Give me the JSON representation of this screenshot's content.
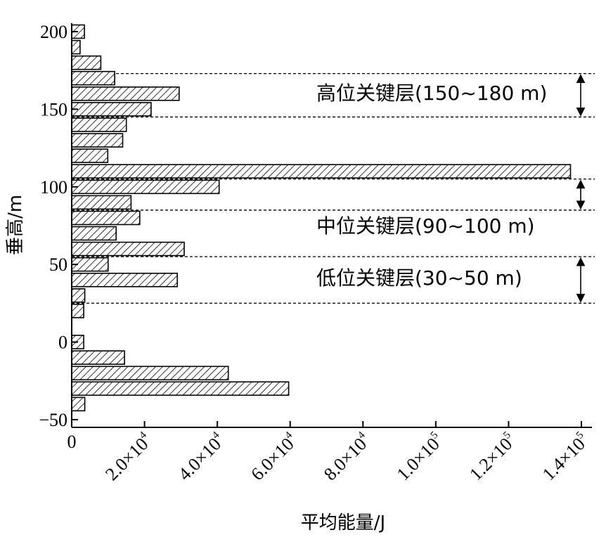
{
  "chart_data": {
    "type": "bar",
    "orientation": "horizontal",
    "title": "",
    "xlabel": "平均能量/J",
    "ylabel": "垂高/m",
    "xlim": [
      0,
      140000
    ],
    "ylim": [
      -50,
      200
    ],
    "x_ticks": [
      {
        "value": 0,
        "mantissa": "0",
        "power": ""
      },
      {
        "value": 20000,
        "mantissa": "2.0×10",
        "power": "4"
      },
      {
        "value": 40000,
        "mantissa": "4.0×10",
        "power": "4"
      },
      {
        "value": 60000,
        "mantissa": "6.0×10",
        "power": "4"
      },
      {
        "value": 80000,
        "mantissa": "8.0×10",
        "power": "4"
      },
      {
        "value": 100000,
        "mantissa": "1.0×10",
        "power": "5"
      },
      {
        "value": 120000,
        "mantissa": "1.2×10",
        "power": "5"
      },
      {
        "value": 140000,
        "mantissa": "1.4×10",
        "power": "5"
      }
    ],
    "y_ticks": [
      "200",
      "150",
      "100",
      "50",
      "0",
      "−50"
    ],
    "y_tick_values": [
      200,
      150,
      100,
      50,
      0,
      -50
    ],
    "bar_fill": "hatched",
    "bars": [
      {
        "height": 200,
        "value": 3500
      },
      {
        "height": 190,
        "value": 2300
      },
      {
        "height": 180,
        "value": 8000
      },
      {
        "height": 170,
        "value": 11800
      },
      {
        "height": 160,
        "value": 29500
      },
      {
        "height": 150,
        "value": 21800
      },
      {
        "height": 140,
        "value": 15000
      },
      {
        "height": 130,
        "value": 14000
      },
      {
        "height": 120,
        "value": 9900
      },
      {
        "height": 110,
        "value": 137000
      },
      {
        "height": 100,
        "value": 40500
      },
      {
        "height": 90,
        "value": 16300
      },
      {
        "height": 80,
        "value": 18700
      },
      {
        "height": 70,
        "value": 12200
      },
      {
        "height": 60,
        "value": 30900
      },
      {
        "height": 50,
        "value": 10000
      },
      {
        "height": 40,
        "value": 29000
      },
      {
        "height": 30,
        "value": 3600
      },
      {
        "height": 20,
        "value": 3300
      },
      {
        "height": 0,
        "value": 3300
      },
      {
        "height": -10,
        "value": 14500
      },
      {
        "height": -20,
        "value": 43000
      },
      {
        "height": -30,
        "value": 59600
      },
      {
        "height": -40,
        "value": 3600
      }
    ],
    "annotations": [
      {
        "label": "高位关键层(150~180 m)",
        "bottom": 145,
        "top": 173
      },
      {
        "label": "中位关键层(90~100 m)",
        "bottom": 85,
        "top": 105
      },
      {
        "label": "低位关键层(30~50 m)",
        "bottom": 25,
        "top": 55
      }
    ]
  }
}
